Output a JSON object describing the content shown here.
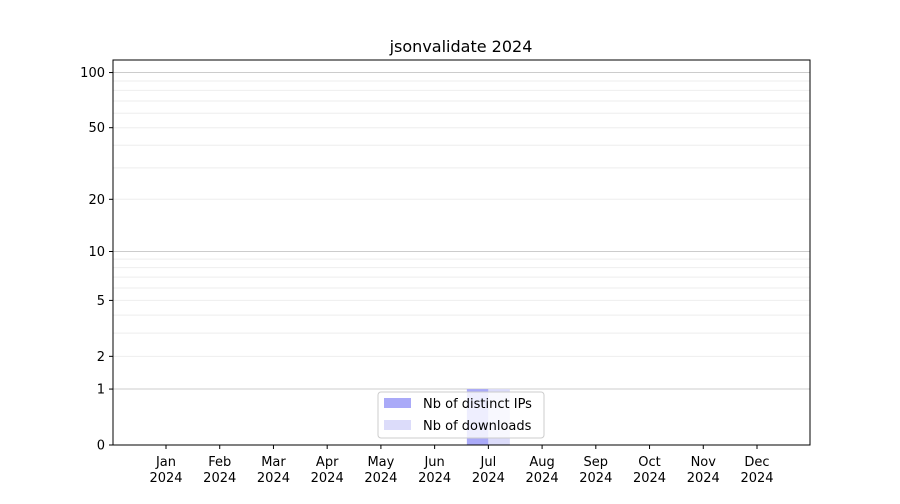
{
  "chart_data": {
    "type": "bar",
    "title": "jsonvalidate 2024",
    "xlabel": "",
    "ylabel": "",
    "yscale": "log(1+y)",
    "categories": [
      "Jan\n2024",
      "Feb\n2024",
      "Mar\n2024",
      "Apr\n2024",
      "May\n2024",
      "Jun\n2024",
      "Jul\n2024",
      "Aug\n2024",
      "Sep\n2024",
      "Oct\n2024",
      "Nov\n2024",
      "Dec\n2024"
    ],
    "yticks": [
      0,
      1,
      2,
      5,
      10,
      20,
      50,
      100
    ],
    "yminor": [
      3,
      4,
      6,
      7,
      8,
      9,
      30,
      40,
      60,
      70,
      80,
      90
    ],
    "ylim": [
      0,
      117
    ],
    "grid": true,
    "legend_position": "bottom-center",
    "series": [
      {
        "name": "Nb of distinct IPs",
        "color": "#aaaaf8",
        "values": [
          0,
          0,
          0,
          0,
          0,
          0,
          1,
          0,
          0,
          0,
          0,
          0
        ]
      },
      {
        "name": "Nb of downloads",
        "color": "#dcdcfa",
        "values": [
          0,
          0,
          0,
          0,
          0,
          0,
          1,
          0,
          0,
          0,
          0,
          0
        ]
      }
    ]
  }
}
